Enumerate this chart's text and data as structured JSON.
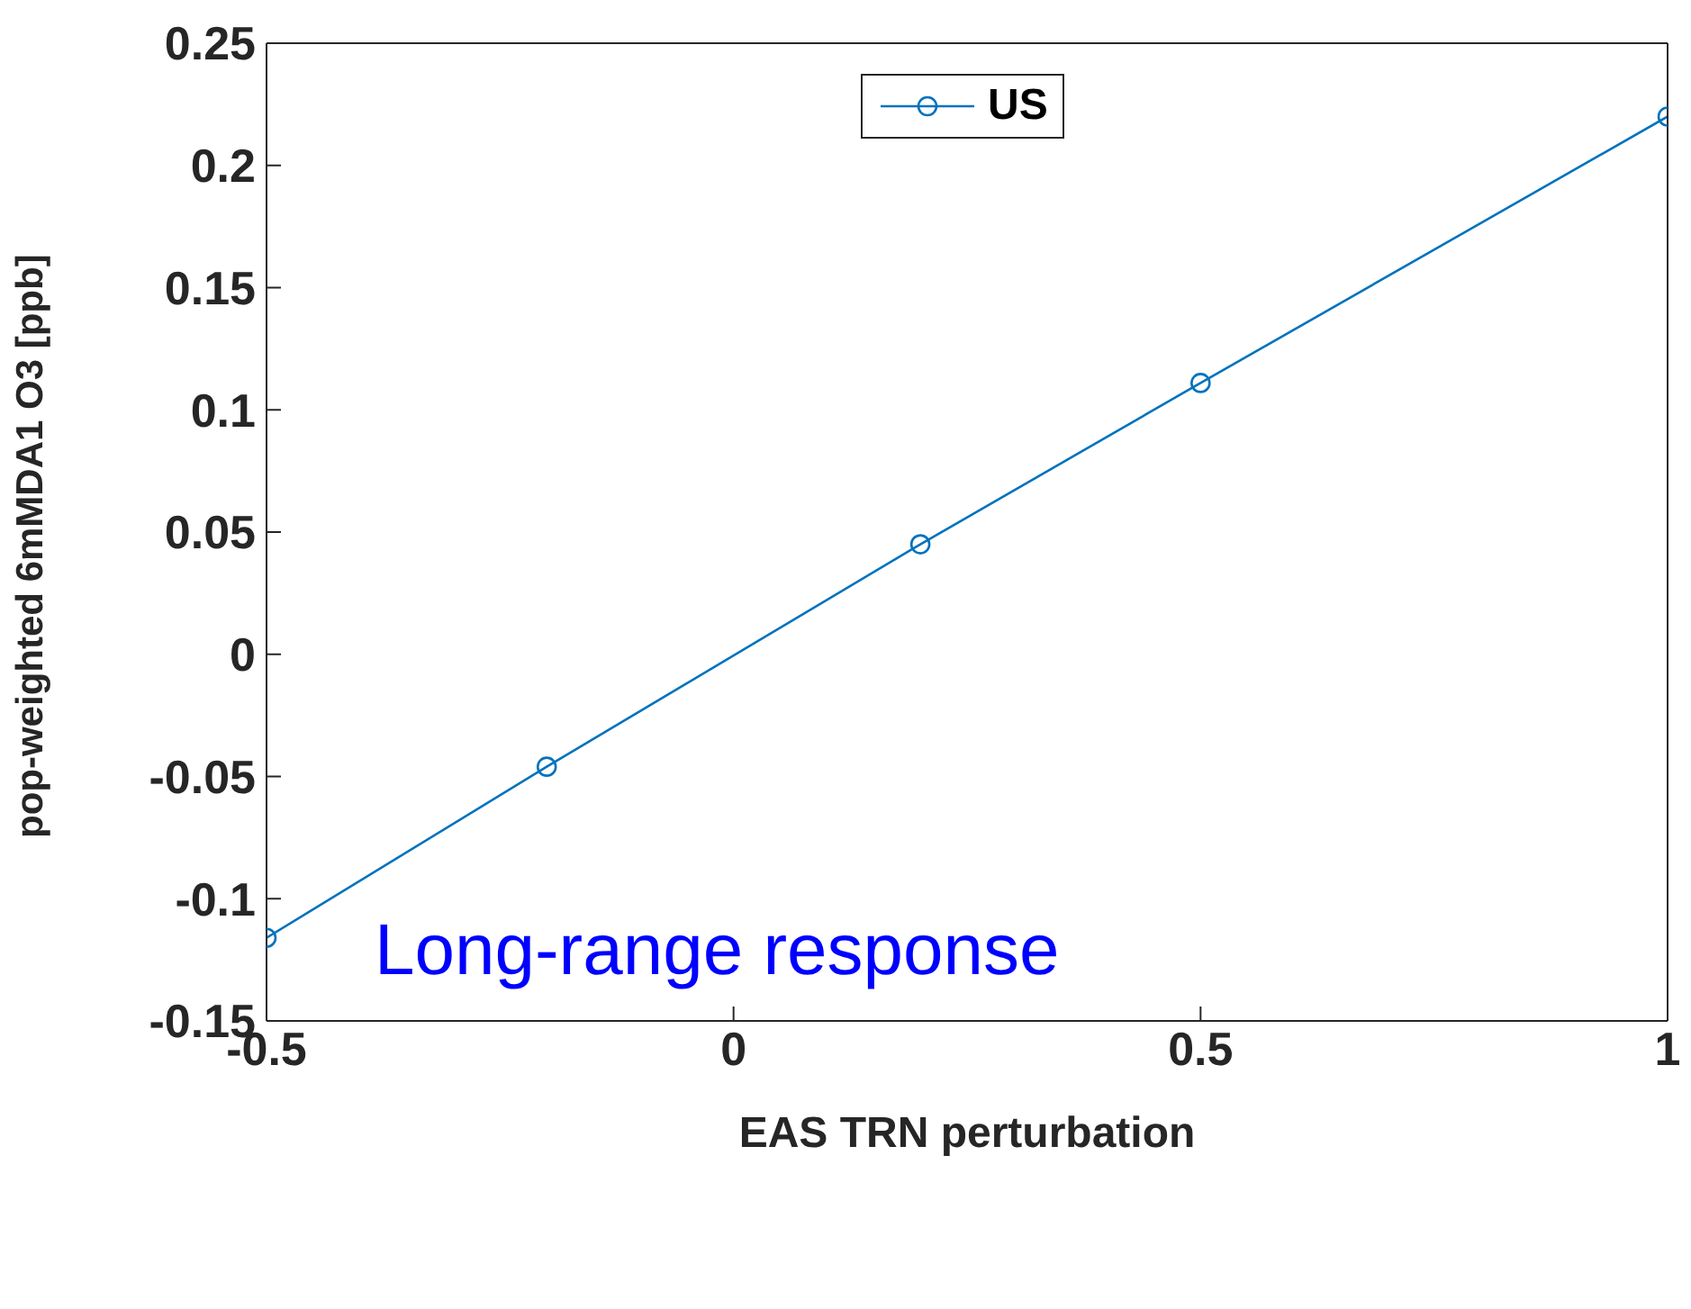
{
  "chart_data": {
    "type": "line",
    "xlabel": "EAS TRN perturbation",
    "ylabel": "pop-weighted 6mMDA1 O3 [ppb]",
    "x": [
      -0.5,
      -0.2,
      0.2,
      0.5,
      1
    ],
    "series": [
      {
        "name": "US",
        "color": "#0072bd",
        "values": [
          -0.116,
          -0.046,
          0.045,
          0.111,
          0.22
        ]
      }
    ],
    "xlim": [
      -0.5,
      1
    ],
    "xticks": [
      -0.5,
      0,
      0.5,
      1
    ],
    "ylim": [
      -0.15,
      0.25
    ],
    "yticks": [
      -0.15,
      -0.1,
      -0.05,
      0,
      0.05,
      0.1,
      0.15,
      0.2,
      0.25
    ],
    "annotations": [
      "Long-range response"
    ],
    "legend": "top",
    "marker": "circle",
    "line_style": "solid",
    "grid": false
  }
}
